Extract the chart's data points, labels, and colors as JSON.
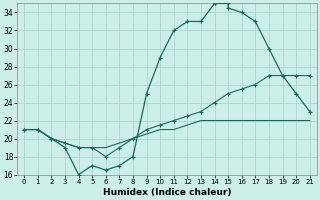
{
  "xlabel": "Humidex (Indice chaleur)",
  "ylabel": "",
  "background_color": "#cceee8",
  "grid_color": "#aad8d0",
  "line_color": "#1a6b5a",
  "xlim": [
    -0.5,
    21.5
  ],
  "ylim": [
    16,
    35
  ],
  "xticks": [
    0,
    1,
    2,
    3,
    4,
    5,
    6,
    7,
    8,
    9,
    10,
    11,
    12,
    13,
    14,
    15,
    16,
    17,
    18,
    19,
    20,
    21
  ],
  "yticks": [
    16,
    18,
    20,
    22,
    24,
    26,
    28,
    30,
    32,
    34
  ],
  "curve1_x": [
    0,
    1,
    2,
    3,
    4,
    5,
    6,
    7,
    8,
    9,
    10,
    11,
    12,
    13,
    14,
    14,
    15,
    15,
    16,
    17,
    18,
    19,
    20,
    21
  ],
  "curve1_y": [
    21,
    21,
    20,
    19,
    16,
    17,
    16.5,
    17,
    18,
    25,
    29,
    32,
    33,
    33,
    35,
    35,
    35,
    34.5,
    34,
    33,
    30,
    27,
    25,
    23
  ],
  "curve2_x": [
    0,
    1,
    2,
    3,
    4,
    5,
    6,
    7,
    8,
    9,
    10,
    11,
    12,
    13,
    14,
    15,
    16,
    17,
    18,
    19,
    20,
    21
  ],
  "curve2_y": [
    21,
    21,
    20,
    19.5,
    19,
    19,
    18,
    19,
    20,
    21,
    21.5,
    22,
    22.5,
    23,
    24,
    25,
    25.5,
    26,
    27,
    27,
    27,
    27
  ],
  "curve3_x": [
    0,
    1,
    2,
    3,
    4,
    5,
    6,
    7,
    8,
    9,
    10,
    11,
    12,
    13,
    14,
    15,
    16,
    17,
    18,
    19,
    20,
    21
  ],
  "curve3_y": [
    21,
    21,
    20,
    19.5,
    19,
    19,
    19,
    19.5,
    20,
    20.5,
    21,
    21,
    21.5,
    22,
    22,
    22,
    22,
    22,
    22,
    22,
    22,
    22
  ]
}
